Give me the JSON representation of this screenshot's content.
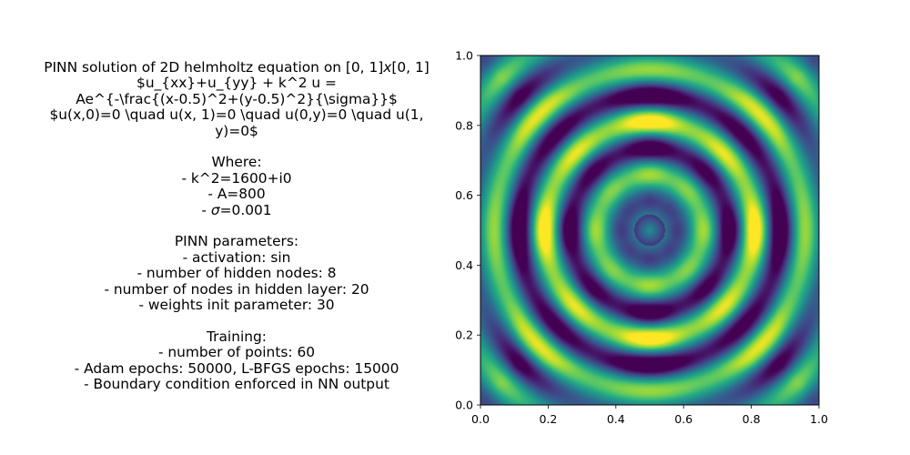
{
  "text_block": {
    "title_prefix": "PINN solution of 2D helmholtz equation on [0, 1]",
    "title_x": "x",
    "title_suffix": "[0, 1]",
    "equation_lines": [
      "$u_{xx}+u_{yy} + k^2 u =",
      "Ae^{-\\frac{(x-0.5)^2+(y-0.5)^2}{\\sigma}}$",
      "$u(x,0)=0 \\quad u(x, 1)=0 \\quad u(0,y)=0 \\quad u(1,",
      "y)=0$"
    ],
    "where_header": "Where:",
    "where_items": [
      "- k^2=1600+i0",
      "- A=800"
    ],
    "sigma_prefix": "- ",
    "sigma_symbol": "σ",
    "sigma_suffix": "=0.001",
    "pinn_header": "PINN parameters:",
    "pinn_items": [
      "- activation: sin",
      "- number of hidden nodes: 8",
      "- number of nodes in hidden layer: 20",
      "- weights init parameter: 30"
    ],
    "training_header": "Training:",
    "training_items": [
      "- number of points: 60",
      "- Adam epochs: 50000, L-BFGS epochs: 15000",
      "- Boundary condition enforced in NN output"
    ]
  },
  "chart_data": {
    "type": "heatmap",
    "colormap": "viridis",
    "xlim": [
      0.0,
      1.0
    ],
    "ylim": [
      0.0,
      1.0
    ],
    "x_ticks": [
      "0.0",
      "0.2",
      "0.4",
      "0.6",
      "0.8",
      "1.0"
    ],
    "y_ticks": [
      "0.0",
      "0.2",
      "0.4",
      "0.6",
      "0.8",
      "1.0"
    ],
    "field": "radial standing-wave pattern centred at (0.5, 0.5): dark minimum ring around a bright centre point, bright rings at r≈0.14, 0.29, 0.45 with eight-fold angular modulation",
    "grid": false
  }
}
